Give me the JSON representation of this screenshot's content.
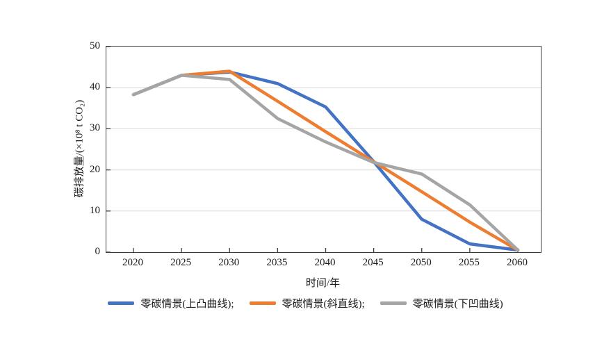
{
  "chart_data": {
    "type": "line",
    "title": "",
    "xlabel": "时间/年",
    "ylabel": "碳排放量/(×10⁸ t CO₂)",
    "x": [
      2020,
      2025,
      2030,
      2035,
      2040,
      2045,
      2050,
      2055,
      2060
    ],
    "xticks": [
      2020,
      2025,
      2030,
      2035,
      2040,
      2045,
      2050,
      2055,
      2060
    ],
    "yticks": [
      0,
      10,
      20,
      30,
      40,
      50
    ],
    "ylim": [
      0,
      50
    ],
    "xlim": [
      2020,
      2060
    ],
    "grid": "horizontal-light",
    "legend_position": "bottom-center",
    "series": [
      {
        "name": "零碳情景(上凸曲线)",
        "color": "#4472C4",
        "values": [
          38.3,
          43.0,
          43.8,
          41.0,
          35.3,
          22.0,
          8.0,
          2.0,
          0.5
        ]
      },
      {
        "name": "零碳情景(斜直线)",
        "color": "#ED7D31",
        "values": [
          38.3,
          43.0,
          44.0,
          36.7,
          29.3,
          22.0,
          14.7,
          7.3,
          0.5
        ]
      },
      {
        "name": "零碳情景(下凹曲线)",
        "color": "#A5A5A5",
        "values": [
          38.3,
          43.0,
          42.0,
          32.5,
          26.8,
          21.8,
          19.0,
          11.5,
          0.5
        ]
      }
    ],
    "legend_labels": [
      "零碳情景(上凸曲线);",
      "零碳情景(斜直线);",
      "零碳情景(下凹曲线)"
    ]
  },
  "colors": {
    "axis_border": "#3a3a3a",
    "gridline": "#d9d9d9",
    "text": "#1a1a1a",
    "background": "#ffffff"
  }
}
